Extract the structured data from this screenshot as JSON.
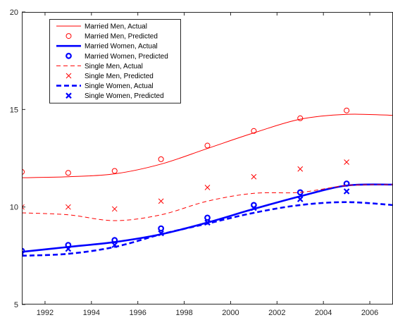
{
  "chart_data": {
    "type": "line",
    "title": "",
    "xlabel": "",
    "ylabel": "",
    "xlim": [
      1991,
      2007
    ],
    "ylim": [
      5,
      20
    ],
    "grid": false,
    "legend_location": "top-left",
    "x_ticks": [
      1992,
      1994,
      1996,
      1998,
      2000,
      2002,
      2004,
      2006
    ],
    "y_ticks": [
      5,
      10,
      15,
      20
    ],
    "series": [
      {
        "name": "Married Men, Actual",
        "kind": "line",
        "style": "solid",
        "weight": "thin",
        "color": "#ff0000",
        "x": [
          1991,
          1993,
          1995,
          1997,
          1999,
          2001,
          2003,
          2005,
          2007
        ],
        "y": [
          11.5,
          11.55,
          11.7,
          12.2,
          13.0,
          13.8,
          14.5,
          14.75,
          14.7
        ]
      },
      {
        "name": "Married Men, Predicted",
        "kind": "marker",
        "marker": "circle",
        "weight": "thin",
        "color": "#ff0000",
        "x": [
          1991,
          1993,
          1995,
          1997,
          1999,
          2001,
          2003,
          2005
        ],
        "y": [
          11.8,
          11.75,
          11.85,
          12.45,
          13.15,
          13.9,
          14.55,
          14.95
        ]
      },
      {
        "name": "Married Women, Actual",
        "kind": "line",
        "style": "solid",
        "weight": "bold",
        "color": "#0000ff",
        "x": [
          1991,
          1993,
          1995,
          1997,
          1999,
          2001,
          2003,
          2005,
          2007
        ],
        "y": [
          7.7,
          7.95,
          8.2,
          8.6,
          9.2,
          9.9,
          10.55,
          11.1,
          11.15
        ]
      },
      {
        "name": "Married Women, Predicted",
        "kind": "marker",
        "marker": "circle",
        "weight": "bold",
        "color": "#0000ff",
        "x": [
          1991,
          1993,
          1995,
          1997,
          1999,
          2001,
          2003,
          2005
        ],
        "y": [
          7.75,
          8.05,
          8.3,
          8.9,
          9.45,
          10.1,
          10.75,
          11.2
        ]
      },
      {
        "name": "Single Men, Actual",
        "kind": "line",
        "style": "dashed",
        "weight": "thin",
        "color": "#ff0000",
        "x": [
          1991,
          1993,
          1995,
          1997,
          1999,
          2001,
          2003,
          2005,
          2007
        ],
        "y": [
          9.7,
          9.6,
          9.3,
          9.6,
          10.3,
          10.7,
          10.75,
          11.1,
          11.15
        ]
      },
      {
        "name": "Single Men, Predicted",
        "kind": "marker",
        "marker": "x",
        "weight": "thin",
        "color": "#ff0000",
        "x": [
          1991,
          1993,
          1995,
          1997,
          1999,
          2001,
          2003,
          2005
        ],
        "y": [
          10.0,
          10.0,
          9.9,
          10.3,
          11.0,
          11.55,
          11.95,
          12.3
        ]
      },
      {
        "name": "Single Women, Actual",
        "kind": "line",
        "style": "dashed",
        "weight": "bold",
        "color": "#0000ff",
        "x": [
          1991,
          1993,
          1995,
          1997,
          1999,
          2001,
          2003,
          2005,
          2007
        ],
        "y": [
          7.5,
          7.6,
          7.95,
          8.6,
          9.15,
          9.7,
          10.1,
          10.25,
          10.1
        ]
      },
      {
        "name": "Single Women, Predicted",
        "kind": "marker",
        "marker": "x",
        "weight": "bold",
        "color": "#0000ff",
        "x": [
          1991,
          1993,
          1995,
          1997,
          1999,
          2001,
          2003,
          2005
        ],
        "y": [
          7.6,
          7.85,
          8.05,
          8.65,
          9.2,
          9.95,
          10.4,
          10.8
        ]
      }
    ]
  }
}
